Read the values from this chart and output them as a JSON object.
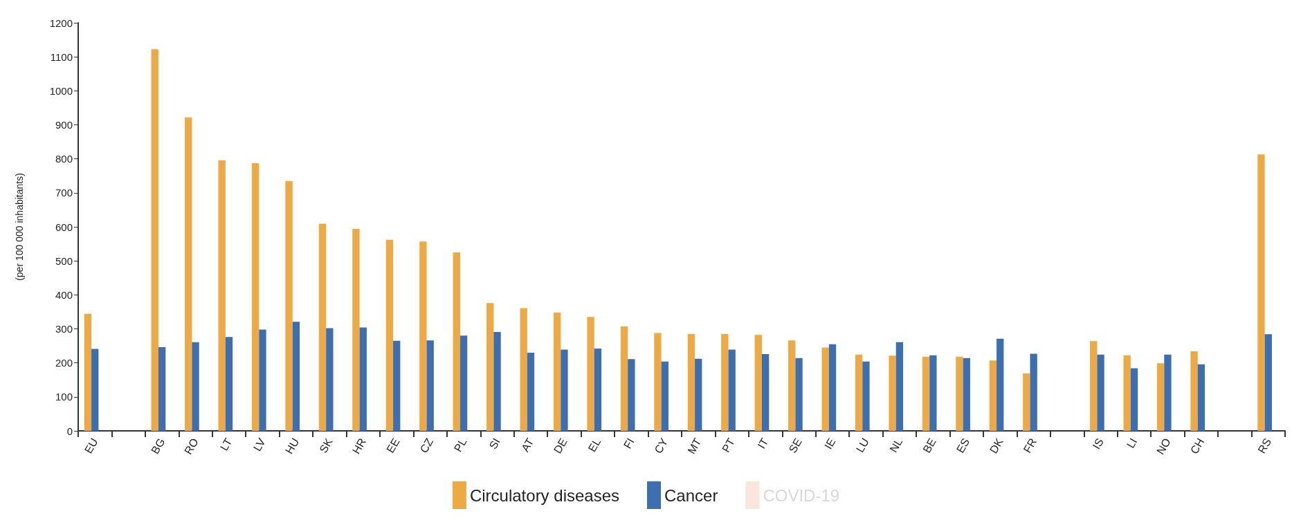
{
  "chart_data": {
    "type": "bar",
    "ylabel": "(per 100 000 inhabitants)",
    "categories": [
      "EU",
      null,
      "BG",
      "RO",
      "LT",
      "LV",
      "HU",
      "SK",
      "HR",
      "EE",
      "CZ",
      "PL",
      "SI",
      "AT",
      "DE",
      "EL",
      "FI",
      "CY",
      "MT",
      "PT",
      "IT",
      "SE",
      "IE",
      "LU",
      "NL",
      "BE",
      "ES",
      "DK",
      "FR",
      null,
      "IS",
      "LI",
      "NO",
      "CH",
      null,
      "RS"
    ],
    "series": [
      {
        "name": "Circulatory diseases",
        "color": "#eca944",
        "values": [
          344,
          null,
          1122,
          922,
          796,
          787,
          735,
          609,
          594,
          562,
          557,
          525,
          376,
          361,
          348,
          335,
          307,
          288,
          285,
          285,
          282,
          266,
          245,
          224,
          221,
          218,
          218,
          207,
          169,
          null,
          264,
          222,
          199,
          234,
          null,
          813
        ]
      },
      {
        "name": "Cancer",
        "color": "#3d6eb0",
        "values": [
          241,
          null,
          246,
          261,
          276,
          298,
          321,
          302,
          304,
          265,
          266,
          280,
          291,
          230,
          239,
          242,
          211,
          204,
          212,
          239,
          226,
          214,
          255,
          204,
          261,
          222,
          214,
          271,
          227,
          null,
          224,
          184,
          224,
          196,
          null,
          284
        ]
      },
      {
        "name": "COVID-19",
        "color": "#fbe6de",
        "values": [
          null,
          null,
          null,
          null,
          null,
          null,
          null,
          null,
          null,
          null,
          null,
          null,
          null,
          null,
          null,
          null,
          null,
          null,
          null,
          null,
          null,
          null,
          null,
          null,
          null,
          null,
          null,
          null,
          null,
          null,
          null,
          null,
          null,
          null,
          null,
          null
        ]
      }
    ],
    "ylim": [
      0,
      1200
    ],
    "yticks": [
      0,
      100,
      200,
      300,
      400,
      500,
      600,
      700,
      800,
      900,
      1000,
      1100,
      1200
    ],
    "grid": false,
    "legend": "bottom"
  }
}
